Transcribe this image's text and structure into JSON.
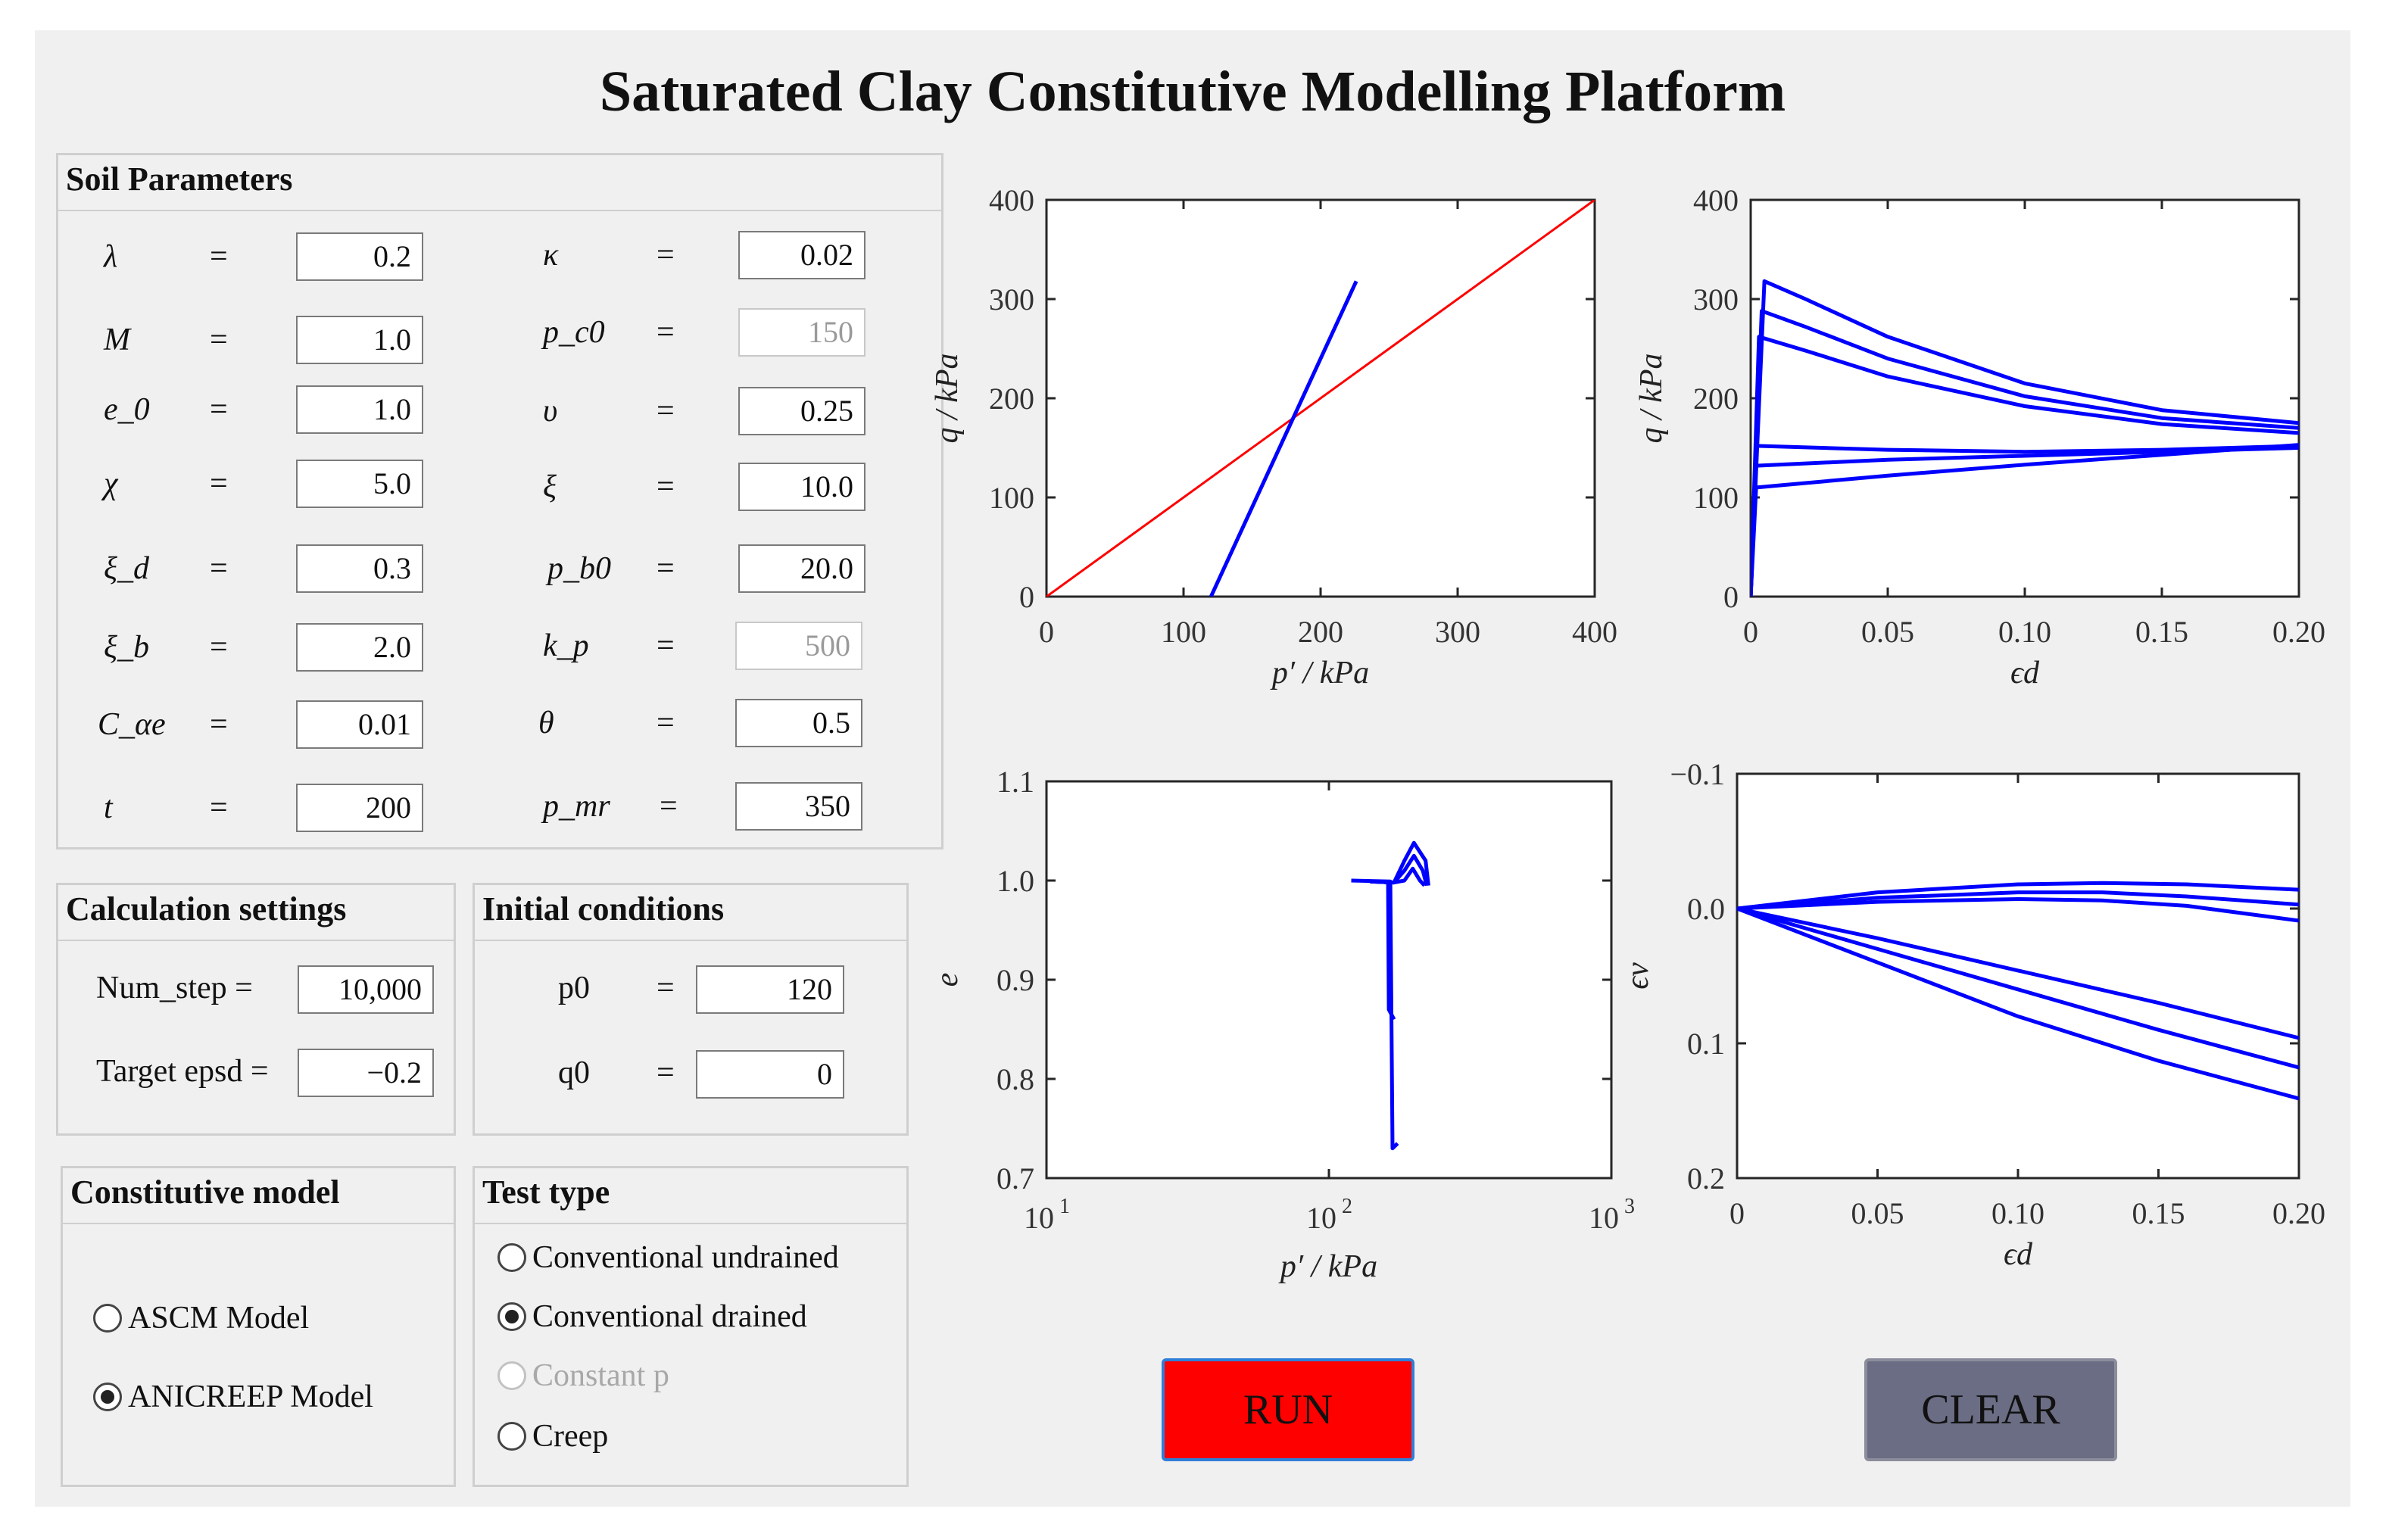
{
  "title": "Saturated Clay Constitutive Modelling Platform",
  "soil": {
    "title": "Soil Parameters",
    "params": [
      {
        "label": "λ",
        "value": "0.2",
        "disabled": false
      },
      {
        "label": "κ",
        "value": "0.02",
        "disabled": false
      },
      {
        "label": "M",
        "value": "1.0",
        "disabled": false
      },
      {
        "label": "p_c0",
        "value": "150",
        "disabled": true
      },
      {
        "label": "e_0",
        "value": "1.0",
        "disabled": false
      },
      {
        "label": "υ",
        "value": "0.25",
        "disabled": false
      },
      {
        "label": "χ",
        "value": "5.0",
        "disabled": false
      },
      {
        "label": "ξ",
        "value": "10.0",
        "disabled": false
      },
      {
        "label": "ξ_d",
        "value": "0.3",
        "disabled": false
      },
      {
        "label": "p_b0",
        "value": "20.0",
        "disabled": false
      },
      {
        "label": "ξ_b",
        "value": "2.0",
        "disabled": false
      },
      {
        "label": "k_p",
        "value": "500",
        "disabled": true
      },
      {
        "label": "C_αe",
        "value": "0.01",
        "disabled": false
      },
      {
        "label": "θ",
        "value": "0.5",
        "disabled": false
      },
      {
        "label": "t",
        "value": "200",
        "disabled": false
      },
      {
        "label": "p_mr",
        "value": "350",
        "disabled": false
      }
    ]
  },
  "calc": {
    "title": "Calculation settings",
    "num_step_label": "Num_step =",
    "num_step": "10,000",
    "target_label": "Target epsd =",
    "target": "−0.2"
  },
  "init": {
    "title": "Initial conditions",
    "p0_label": "p0",
    "p0": "120",
    "q0_label": "q0",
    "q0": "0",
    "eq": "="
  },
  "model": {
    "title": "Constitutive model",
    "options": [
      {
        "label": "ASCM Model",
        "selected": false
      },
      {
        "label": "ANICREEP Model",
        "selected": true
      }
    ]
  },
  "test": {
    "title": "Test type",
    "options": [
      {
        "label": "Conventional undrained",
        "selected": false,
        "disabled": false
      },
      {
        "label": "Conventional drained",
        "selected": true,
        "disabled": false
      },
      {
        "label": "Constant p",
        "selected": false,
        "disabled": true
      },
      {
        "label": "Creep",
        "selected": false,
        "disabled": false
      }
    ]
  },
  "buttons": {
    "run": "RUN",
    "clear": "CLEAR"
  },
  "colors": {
    "series": "#0000ff",
    "csl": "#ff0000",
    "run": "#ff0000",
    "clear": "#6b6d84"
  },
  "chart_data": [
    {
      "type": "line",
      "xlabel": "p′ / kPa",
      "ylabel": "q / kPa",
      "xlim": [
        0,
        400
      ],
      "ylim": [
        0,
        400
      ],
      "xticks": [
        0,
        100,
        200,
        300,
        400
      ],
      "yticks": [
        0,
        100,
        200,
        300,
        400
      ],
      "series": [
        {
          "color": "#ff0000",
          "x": [
            0,
            400
          ],
          "y": [
            0,
            400
          ]
        },
        {
          "color": "#0000ff",
          "x": [
            120,
            226
          ],
          "y": [
            0,
            318
          ]
        }
      ]
    },
    {
      "type": "line",
      "xlabel": "ϵd",
      "ylabel": "q / kPa",
      "xlim": [
        0,
        0.2
      ],
      "ylim": [
        0,
        400
      ],
      "xticks": [
        0,
        0.05,
        0.1,
        0.15,
        0.2
      ],
      "xtick_labels": [
        "0",
        "0.05",
        "0.10",
        "0.15",
        "0.20"
      ],
      "yticks": [
        0,
        100,
        200,
        300,
        400
      ],
      "series": [
        {
          "color": "#0000ff",
          "x": [
            0,
            0.005,
            0.02,
            0.05,
            0.1,
            0.15,
            0.2
          ],
          "y": [
            0,
            318,
            300,
            262,
            215,
            188,
            175
          ]
        },
        {
          "color": "#0000ff",
          "x": [
            0,
            0.004,
            0.02,
            0.05,
            0.1,
            0.15,
            0.2
          ],
          "y": [
            0,
            288,
            272,
            240,
            202,
            180,
            170
          ]
        },
        {
          "color": "#0000ff",
          "x": [
            0,
            0.003,
            0.02,
            0.05,
            0.1,
            0.15,
            0.2
          ],
          "y": [
            0,
            262,
            248,
            222,
            192,
            174,
            165
          ]
        },
        {
          "color": "#0000ff",
          "x": [
            0,
            0.002,
            0.05,
            0.1,
            0.15,
            0.2
          ],
          "y": [
            0,
            152,
            148,
            146,
            148,
            152
          ]
        },
        {
          "color": "#0000ff",
          "x": [
            0,
            0.002,
            0.05,
            0.1,
            0.15,
            0.2
          ],
          "y": [
            0,
            132,
            138,
            142,
            146,
            150
          ]
        },
        {
          "color": "#0000ff",
          "x": [
            0,
            0.002,
            0.05,
            0.1,
            0.15,
            0.2
          ],
          "y": [
            0,
            110,
            122,
            133,
            143,
            153
          ]
        }
      ]
    },
    {
      "type": "line",
      "xlabel": "p′ / kPa",
      "ylabel": "e",
      "xscale": "log",
      "xlim": [
        10,
        1000
      ],
      "ylim": [
        0.7,
        1.1
      ],
      "xticks": [
        10,
        100,
        1000
      ],
      "xtick_base": "10",
      "xtick_exps": [
        "1",
        "2",
        "3"
      ],
      "yticks": [
        0.7,
        0.8,
        0.9,
        1.0,
        1.1
      ],
      "ytick_labels": [
        "0.7",
        "0.8",
        "0.9",
        "1.0",
        "1.1"
      ],
      "series": [
        {
          "color": "#0000ff",
          "x": [
            120,
            165,
            168,
            175
          ],
          "y": [
            1.0,
            0.999,
            0.73,
            0.735
          ]
        },
        {
          "color": "#0000ff",
          "x": [
            150,
            162,
            163,
            170
          ],
          "y": [
            0.999,
            0.998,
            0.87,
            0.86
          ]
        },
        {
          "color": "#0000ff",
          "x": [
            140,
            170,
            185,
            200,
            220,
            225
          ],
          "y": [
            0.999,
            0.998,
            1.02,
            1.038,
            1.02,
            0.995
          ]
        },
        {
          "color": "#0000ff",
          "x": [
            140,
            170,
            185,
            200,
            215,
            222
          ],
          "y": [
            0.999,
            0.998,
            1.01,
            1.025,
            1.01,
            0.995
          ]
        },
        {
          "color": "#0000ff",
          "x": [
            140,
            170,
            185,
            198,
            210,
            218
          ],
          "y": [
            0.999,
            0.998,
            1.0,
            1.012,
            1.0,
            0.995
          ]
        }
      ]
    },
    {
      "type": "line",
      "xlabel": "ϵd",
      "ylabel": "ϵv",
      "xlim": [
        0,
        0.2
      ],
      "ylim": [
        0.2,
        -0.1
      ],
      "yinvert": true,
      "xticks": [
        0,
        0.05,
        0.1,
        0.15,
        0.2
      ],
      "xtick_labels": [
        "0",
        "0.05",
        "0.10",
        "0.15",
        "0.20"
      ],
      "yticks": [
        -0.1,
        0.0,
        0.1,
        0.2
      ],
      "ytick_labels": [
        "−0.1",
        "0.0",
        "0.1",
        "0.2"
      ],
      "series": [
        {
          "color": "#0000ff",
          "x": [
            0,
            0.05,
            0.1,
            0.13,
            0.16,
            0.2
          ],
          "y": [
            0,
            -0.012,
            -0.018,
            -0.019,
            -0.018,
            -0.014
          ]
        },
        {
          "color": "#0000ff",
          "x": [
            0,
            0.05,
            0.1,
            0.13,
            0.16,
            0.2
          ],
          "y": [
            0,
            -0.008,
            -0.012,
            -0.012,
            -0.009,
            -0.003
          ]
        },
        {
          "color": "#0000ff",
          "x": [
            0,
            0.05,
            0.1,
            0.13,
            0.16,
            0.2
          ],
          "y": [
            0,
            -0.005,
            -0.007,
            -0.006,
            -0.002,
            0.009
          ]
        },
        {
          "color": "#0000ff",
          "x": [
            0,
            0.05,
            0.1,
            0.15,
            0.2
          ],
          "y": [
            0,
            0.022,
            0.046,
            0.07,
            0.096
          ]
        },
        {
          "color": "#0000ff",
          "x": [
            0,
            0.05,
            0.1,
            0.15,
            0.2
          ],
          "y": [
            0,
            0.03,
            0.06,
            0.09,
            0.118
          ]
        },
        {
          "color": "#0000ff",
          "x": [
            0,
            0.05,
            0.1,
            0.15,
            0.2
          ],
          "y": [
            0,
            0.04,
            0.08,
            0.113,
            0.141
          ]
        }
      ]
    }
  ]
}
